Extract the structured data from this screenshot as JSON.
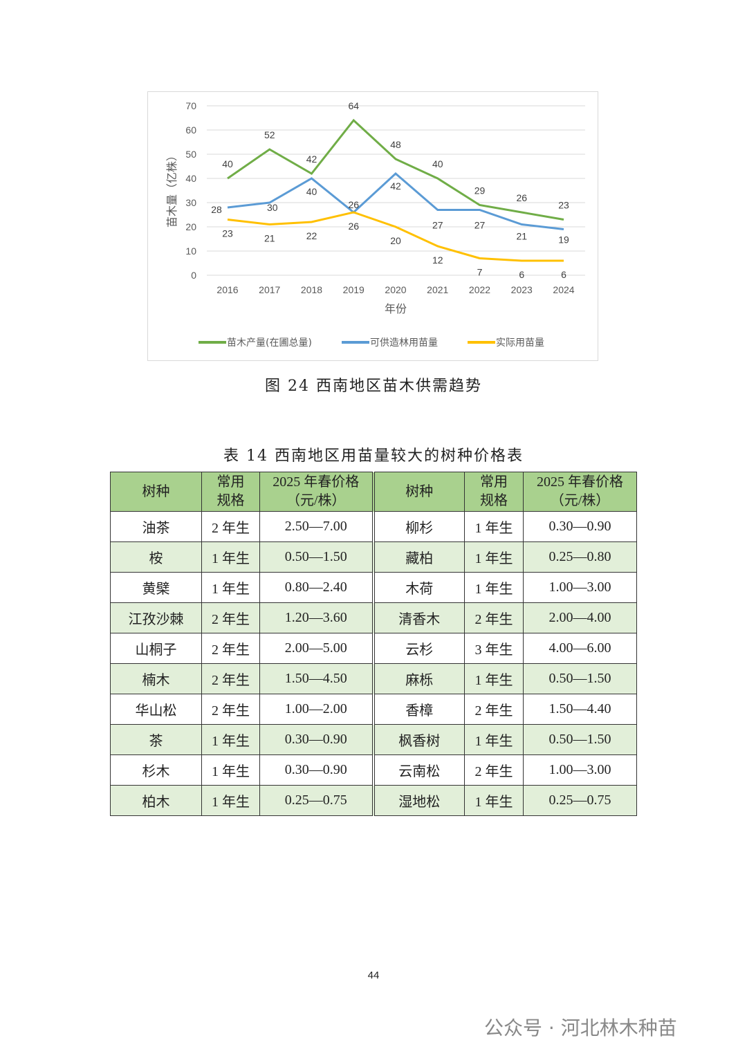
{
  "chart_data": {
    "type": "line",
    "x": [
      "2016",
      "2017",
      "2018",
      "2019",
      "2020",
      "2021",
      "2022",
      "2023",
      "2024"
    ],
    "xlabel": "年份",
    "ylabel": "苗木量（亿株）",
    "ylim": [
      0,
      70
    ],
    "yticks": [
      "0",
      "10",
      "20",
      "30",
      "40",
      "50",
      "60",
      "70"
    ],
    "grid": true,
    "legend": "bottom",
    "series": [
      {
        "name": "苗木产量(在圃总量)",
        "color": "#70ad47",
        "values": [
          40,
          52,
          42,
          64,
          48,
          40,
          29,
          26,
          23
        ]
      },
      {
        "name": "可供造林用苗量",
        "color": "#5b9bd5",
        "values": [
          28,
          30,
          40,
          26,
          42,
          27,
          27,
          21,
          19
        ]
      },
      {
        "name": "实际用苗量",
        "color": "#ffc000",
        "values": [
          23,
          21,
          22,
          26,
          20,
          12,
          7,
          6,
          6
        ]
      }
    ]
  },
  "figure_caption": "图 24  西南地区苗木供需趋势",
  "table_caption": "表 14  西南地区用苗量较大的树种价格表",
  "table": {
    "headers": [
      "树种",
      "常用规格",
      "2025 年春价格（元/株）",
      "树种",
      "常用规格",
      "2025 年春价格（元/株）"
    ],
    "header_lines": [
      [
        "树种"
      ],
      [
        "常用",
        "规格"
      ],
      [
        "2025 年春价格",
        "（元/株）"
      ],
      [
        "树种"
      ],
      [
        "常用",
        "规格"
      ],
      [
        "2025 年春价格",
        "（元/株）"
      ]
    ],
    "rows": [
      [
        "油茶",
        "2 年生",
        "2.50—7.00",
        "柳杉",
        "1 年生",
        "0.30—0.90"
      ],
      [
        "桉",
        "1 年生",
        "0.50—1.50",
        "藏柏",
        "1 年生",
        "0.25—0.80"
      ],
      [
        "黄檗",
        "1 年生",
        "0.80—2.40",
        "木荷",
        "1 年生",
        "1.00—3.00"
      ],
      [
        "江孜沙棘",
        "2 年生",
        "1.20—3.60",
        "清香木",
        "2 年生",
        "2.00—4.00"
      ],
      [
        "山桐子",
        "2 年生",
        "2.00—5.00",
        "云杉",
        "3 年生",
        "4.00—6.00"
      ],
      [
        "楠木",
        "2 年生",
        "1.50—4.50",
        "麻栎",
        "1 年生",
        "0.50—1.50"
      ],
      [
        "华山松",
        "2 年生",
        "1.00—2.00",
        "香樟",
        "2 年生",
        "1.50—4.40"
      ],
      [
        "茶",
        "1 年生",
        "0.30—0.90",
        "枫香树",
        "1 年生",
        "0.50—1.50"
      ],
      [
        "杉木",
        "1 年生",
        "0.30—0.90",
        "云南松",
        "2 年生",
        "1.00—3.00"
      ],
      [
        "柏木",
        "1 年生",
        "0.25—0.75",
        "湿地松",
        "1 年生",
        "0.25—0.75"
      ]
    ]
  },
  "page_number": "44",
  "watermark": "公众号 · 河北林木种苗",
  "colors": {
    "header_bg": "#a9d18e",
    "alt_row_bg": "#e2efd9"
  }
}
